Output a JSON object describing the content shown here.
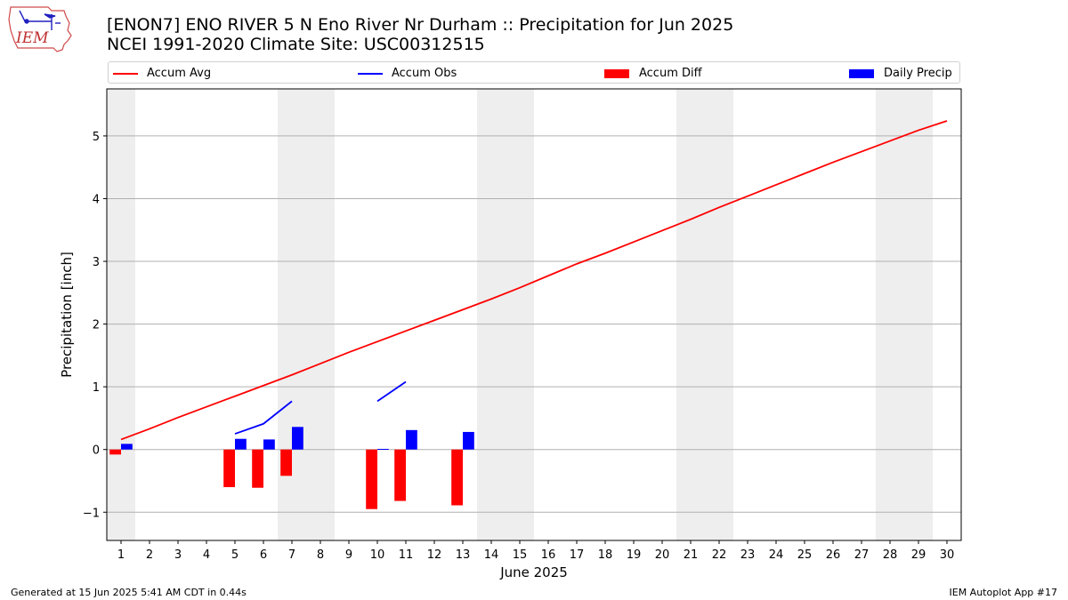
{
  "header": {
    "title_line1": "[ENON7] ENO RIVER 5 N Eno River Nr Durham :: Precipitation for Jun 2025",
    "title_line2": "NCEI 1991-2020 Climate Site: USC00312515"
  },
  "logo": {
    "text": "IEM",
    "icon": "iem-iowa-logo-icon"
  },
  "footer": {
    "left": "Generated at 15 Jun 2025 5:41 AM CDT in 0.44s",
    "right": "IEM Autoplot App #17"
  },
  "chart_data": {
    "type": "bar",
    "xlabel": "June 2025",
    "ylabel": "Precipitation [inch]",
    "xlim": [
      0.5,
      30.5
    ],
    "ylim": [
      -1.45,
      5.75
    ],
    "yticks": [
      -1,
      0,
      1,
      2,
      3,
      4,
      5
    ],
    "ytick_labels": [
      "−1",
      "0",
      "1",
      "2",
      "3",
      "4",
      "5"
    ],
    "xticks": [
      1,
      2,
      3,
      4,
      5,
      6,
      7,
      8,
      9,
      10,
      11,
      12,
      13,
      14,
      15,
      16,
      17,
      18,
      19,
      20,
      21,
      22,
      23,
      24,
      25,
      26,
      27,
      28,
      29,
      30
    ],
    "grid": "horizontal",
    "legend_placement": "top",
    "weekend_shading": [
      [
        0.5,
        1.5
      ],
      [
        6.5,
        8.5
      ],
      [
        13.5,
        15.5
      ],
      [
        20.5,
        22.5
      ],
      [
        27.5,
        29.5
      ]
    ],
    "series": [
      {
        "name": "Accum Avg",
        "kind": "line",
        "color": "#ff0000",
        "x": [
          1,
          2,
          3,
          4,
          5,
          6,
          7,
          8,
          9,
          10,
          11,
          12,
          13,
          14,
          15,
          16,
          17,
          18,
          19,
          20,
          21,
          22,
          23,
          24,
          25,
          26,
          27,
          28,
          29,
          30
        ],
        "values": [
          0.16,
          0.33,
          0.51,
          0.68,
          0.85,
          1.02,
          1.19,
          1.37,
          1.55,
          1.72,
          1.89,
          2.06,
          2.23,
          2.4,
          2.58,
          2.77,
          2.96,
          3.13,
          3.31,
          3.49,
          3.67,
          3.86,
          4.04,
          4.22,
          4.4,
          4.58,
          4.75,
          4.92,
          5.09,
          5.24
        ]
      },
      {
        "name": "Accum Obs",
        "kind": "line",
        "color": "#0000ff",
        "segments": [
          {
            "x": [
              5,
              6,
              7
            ],
            "values": [
              0.25,
              0.41,
              0.77
            ]
          },
          {
            "x": [
              10,
              11
            ],
            "values": [
              0.77,
              1.08
            ]
          }
        ]
      },
      {
        "name": "Accum Diff",
        "kind": "bar",
        "color": "#ff0000",
        "x": [
          1,
          5,
          6,
          7,
          10,
          11,
          13
        ],
        "values": [
          -0.08,
          -0.6,
          -0.61,
          -0.42,
          -0.95,
          -0.82,
          -0.89
        ]
      },
      {
        "name": "Daily Precip",
        "kind": "bar",
        "color": "#0000ff",
        "x": [
          1,
          5,
          6,
          7,
          10,
          11,
          13
        ],
        "values": [
          0.09,
          0.17,
          0.16,
          0.36,
          0.01,
          0.31,
          0.28
        ]
      }
    ]
  }
}
